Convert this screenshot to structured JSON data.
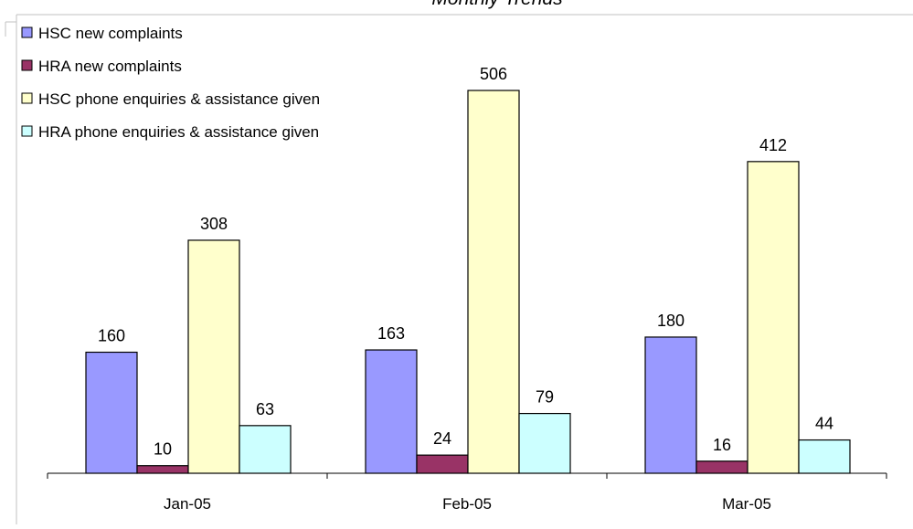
{
  "chart_data": {
    "type": "bar",
    "title": "Monthly Trends",
    "categories": [
      "Jan-05",
      "Feb-05",
      "Mar-05"
    ],
    "series": [
      {
        "name": "HSC new complaints",
        "values": [
          160,
          163,
          180
        ],
        "color": "#9999FF"
      },
      {
        "name": "HRA new complaints",
        "values": [
          10,
          24,
          16
        ],
        "color": "#993366"
      },
      {
        "name": "HSC phone enquiries & assistance given",
        "values": [
          308,
          506,
          412
        ],
        "color": "#FFFFCC"
      },
      {
        "name": "HRA phone enquiries & assistance given",
        "values": [
          63,
          79,
          44
        ],
        "color": "#CCFFFF"
      }
    ],
    "ylim": [
      0,
      506
    ],
    "legend_position": "top-left",
    "grid": false,
    "data_labels": true
  }
}
